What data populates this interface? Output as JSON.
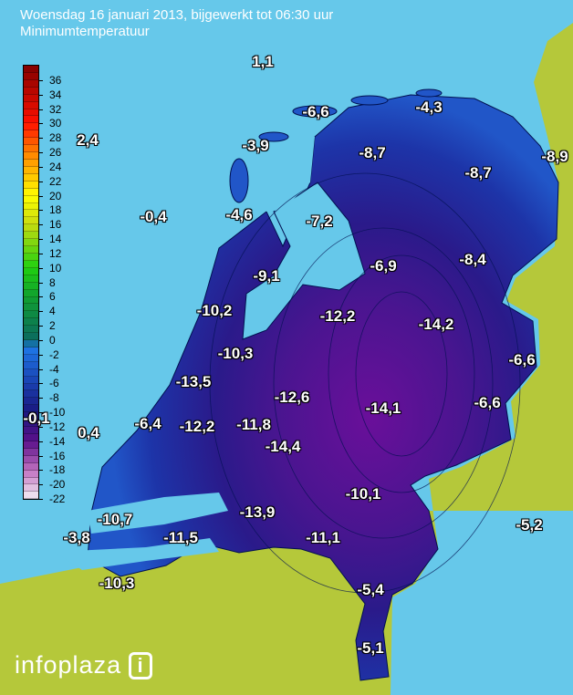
{
  "header": {
    "title": "Woensdag 16 januari 2013, bijgewerkt tot 06:30 uur",
    "subtitle": "Minimumtemperatuur"
  },
  "legend": {
    "ticks": [
      "36",
      "34",
      "32",
      "30",
      "28",
      "26",
      "24",
      "22",
      "20",
      "18",
      "16",
      "14",
      "12",
      "10",
      "8",
      "6",
      "4",
      "2",
      "0",
      "-2",
      "-4",
      "-6",
      "-8",
      "-10",
      "-12",
      "-14",
      "-16",
      "-18",
      "-20",
      "-22"
    ],
    "range": [
      -22,
      38
    ]
  },
  "colors": {
    "sea": "#66c8ea",
    "land_outside": "#b5c83a",
    "cold_max": "#6a0f9a",
    "mild": "#1e5fd0"
  },
  "stations": [
    "1,1",
    "-6,6",
    "-4,3",
    "2,4",
    "-3,9",
    "-8,7",
    "-8,9",
    "-8,7",
    "-0,4",
    "-4,6",
    "-7,2",
    "-6,9",
    "-8,4",
    "-9,1",
    "-10,2",
    "-12,2",
    "-14,2",
    "-10,3",
    "-6,6",
    "-13,5",
    "-12,6",
    "-14,1",
    "-6,6",
    "-0,1",
    "0,4",
    "-6,4",
    "-12,2",
    "-11,8",
    "-14,4",
    "-10,1",
    "-13,9",
    "-10,7",
    "-5,2",
    "-3,8",
    "-11,5",
    "-11,1",
    "-10,3",
    "-5,4",
    "-5,1"
  ],
  "logo": {
    "text": "infoplaza",
    "mark": "i"
  }
}
